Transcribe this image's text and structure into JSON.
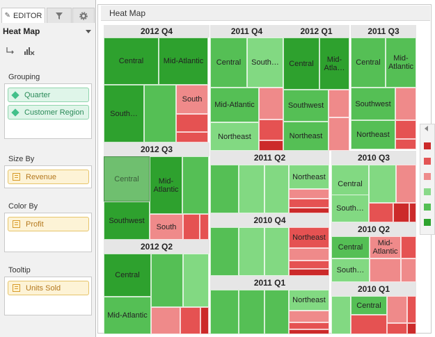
{
  "editor": {
    "tabs": [
      {
        "label": "EDITOR"
      },
      {
        "label": ""
      },
      {
        "label": ""
      }
    ],
    "chart_type": "Heat Map",
    "sections": {
      "grouping": {
        "title": "Grouping",
        "items": [
          "Quarter",
          "Customer Region"
        ]
      },
      "size_by": {
        "title": "Size By",
        "items": [
          "Revenue"
        ]
      },
      "color_by": {
        "title": "Color By",
        "items": [
          "Profit"
        ]
      },
      "tooltip": {
        "title": "Tooltip",
        "items": [
          "Units Sold"
        ]
      }
    }
  },
  "heatmap": {
    "title": "Heat Map",
    "groups": [
      {
        "label": "2012 Q4",
        "cells": [
          {
            "label": "Central"
          },
          {
            "label": "Mid-Atlantic"
          },
          {
            "label": "South…"
          },
          {
            "label": ""
          },
          {
            "label": "South"
          },
          {
            "label": ""
          },
          {
            "label": ""
          }
        ]
      },
      {
        "label": "2011 Q4",
        "cells": [
          {
            "label": "Central"
          },
          {
            "label": "South…"
          },
          {
            "label": "Mid-Atlantic"
          },
          {
            "label": ""
          },
          {
            "label": "Northeast"
          },
          {
            "label": ""
          },
          {
            "label": ""
          }
        ]
      },
      {
        "label": "2012 Q1",
        "cells": [
          {
            "label": "Central"
          },
          {
            "label": "Mid-Atla…"
          },
          {
            "label": "Southwest"
          },
          {
            "label": ""
          },
          {
            "label": "Northeast"
          },
          {
            "label": ""
          }
        ]
      },
      {
        "label": "2011 Q3",
        "cells": [
          {
            "label": "Central"
          },
          {
            "label": "Mid-Atlantic"
          },
          {
            "label": "Southwest"
          },
          {
            "label": ""
          },
          {
            "label": "Northeast"
          },
          {
            "label": ""
          },
          {
            "label": ""
          }
        ]
      },
      {
        "label": "2012 Q3",
        "cells": [
          {
            "label": "Central"
          },
          {
            "label": "Mid-Atlantic"
          },
          {
            "label": ""
          },
          {
            "label": "Southwest"
          },
          {
            "label": "South"
          },
          {
            "label": ""
          },
          {
            "label": ""
          }
        ]
      },
      {
        "label": "2011 Q2",
        "cells": [
          {
            "label": ""
          },
          {
            "label": ""
          },
          {
            "label": ""
          },
          {
            "label": "Northeast"
          },
          {
            "label": ""
          },
          {
            "label": ""
          },
          {
            "label": ""
          }
        ]
      },
      {
        "label": "2010 Q3",
        "cells": [
          {
            "label": "Central"
          },
          {
            "label": ""
          },
          {
            "label": ""
          },
          {
            "label": "South…"
          },
          {
            "label": ""
          },
          {
            "label": ""
          },
          {
            "label": ""
          }
        ]
      },
      {
        "label": "2010 Q4",
        "cells": [
          {
            "label": ""
          },
          {
            "label": ""
          },
          {
            "label": ""
          },
          {
            "label": "Northeast"
          },
          {
            "label": ""
          },
          {
            "label": ""
          },
          {
            "label": ""
          }
        ]
      },
      {
        "label": "2010 Q2",
        "cells": [
          {
            "label": "Central"
          },
          {
            "label": "Mid-Atlantic"
          },
          {
            "label": ""
          },
          {
            "label": "South…"
          },
          {
            "label": ""
          },
          {
            "label": ""
          }
        ]
      },
      {
        "label": "2012 Q2",
        "cells": [
          {
            "label": "Central"
          },
          {
            "label": ""
          },
          {
            "label": ""
          },
          {
            "label": "Mid-Atlantic"
          },
          {
            "label": ""
          },
          {
            "label": ""
          },
          {
            "label": ""
          }
        ]
      },
      {
        "label": "2011 Q1",
        "cells": [
          {
            "label": ""
          },
          {
            "label": ""
          },
          {
            "label": ""
          },
          {
            "label": "Northeast"
          },
          {
            "label": ""
          },
          {
            "label": ""
          },
          {
            "label": ""
          }
        ]
      },
      {
        "label": "2010 Q1",
        "cells": [
          {
            "label": ""
          },
          {
            "label": "Central"
          },
          {
            "label": ""
          },
          {
            "label": ""
          },
          {
            "label": ""
          },
          {
            "label": ""
          },
          {
            "label": ""
          }
        ]
      }
    ]
  },
  "legend": {
    "colors": [
      "#cc2a2a",
      "#e35555",
      "#ee8c8c",
      "#8ad98a",
      "#55bf55",
      "#2ea32e"
    ]
  },
  "colors": {
    "dark_green": "#2ea12e",
    "green": "#55bf55",
    "light_green": "#82d982",
    "light_red": "#ef8a8a",
    "red": "#e55252",
    "dark_red": "#cc2a2a",
    "highlight": "#6fbf6f"
  }
}
